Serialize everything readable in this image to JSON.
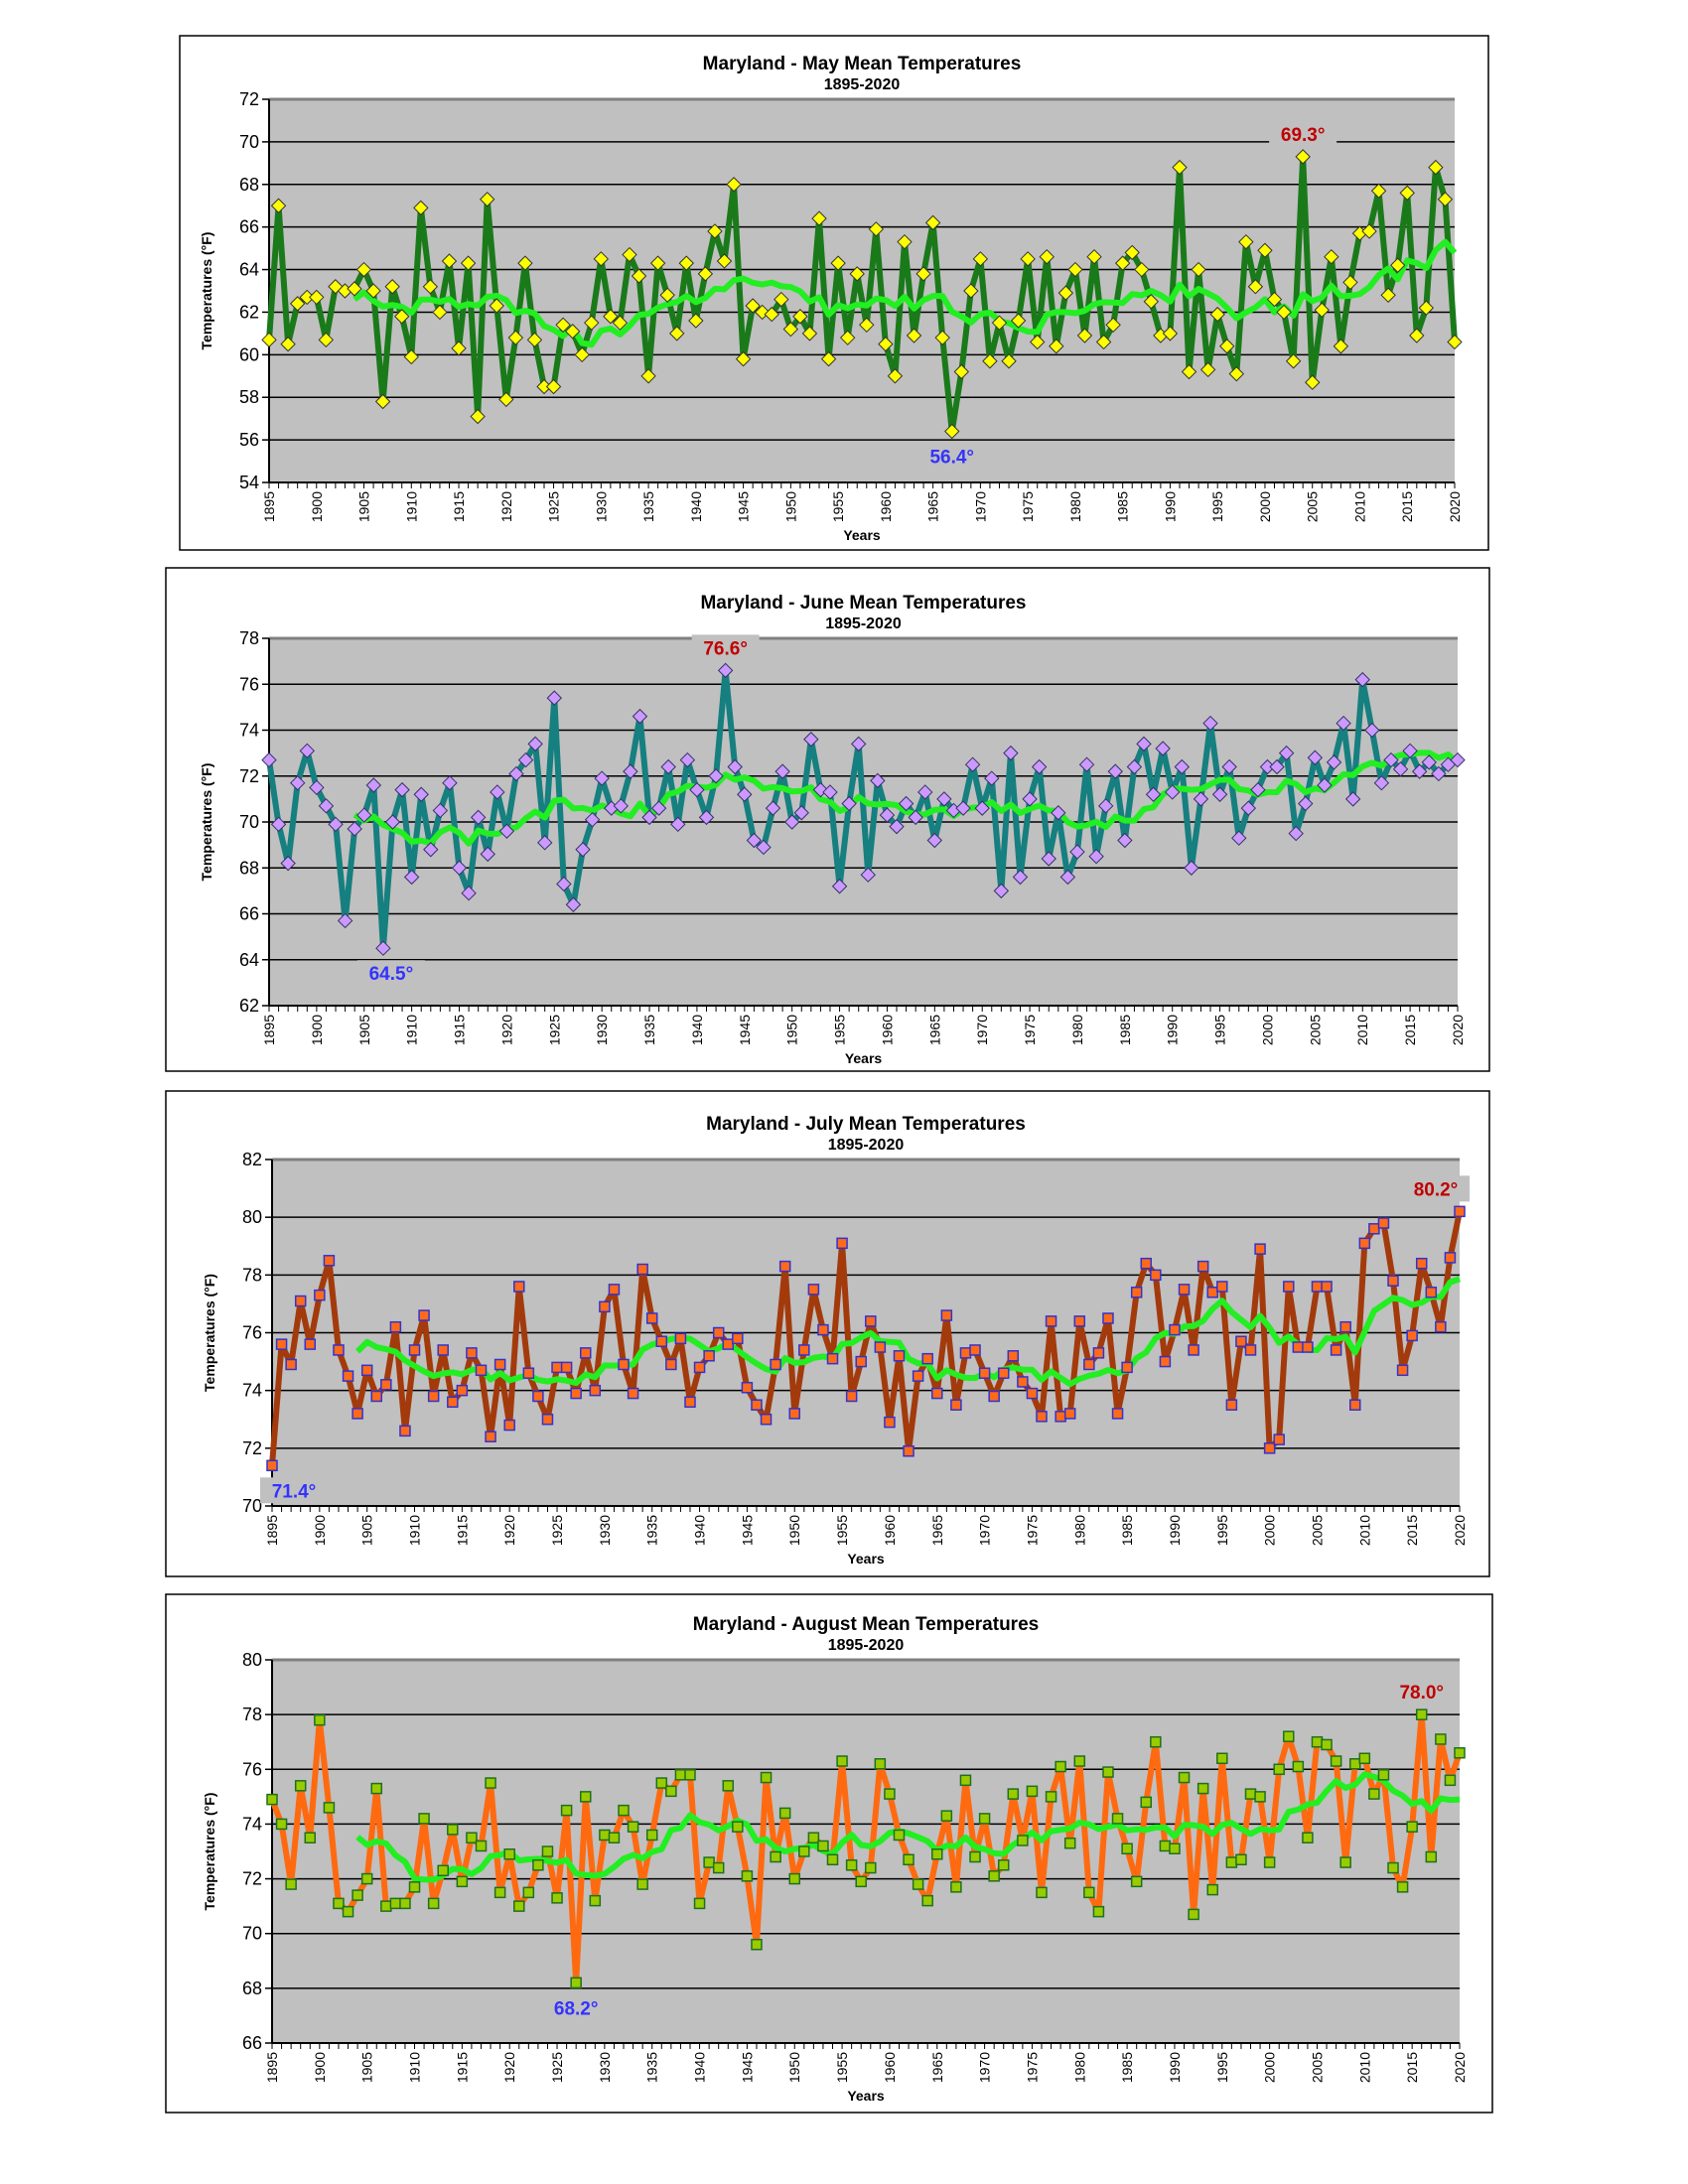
{
  "chart_data": [
    {
      "type": "line",
      "title": "Maryland - May Mean Temperatures",
      "subtitle": "1895-2020",
      "xlabel": "Years",
      "ylabel": "Temperatures (°F)",
      "x_start": 1895,
      "x_end": 2020,
      "x_tick_step": 5,
      "ylim": [
        54,
        72
      ],
      "y_tick_step": 2,
      "grid": true,
      "legend": "none",
      "colors": {
        "line": "#1a7a1a",
        "marker_fill": "#ffff00",
        "marker_edge": "#333333",
        "moving_average": "#22ee22",
        "plot_bg": "#c0c0c0"
      },
      "marker": "diamond",
      "moving_average_window": 10,
      "values": [
        60.7,
        67.0,
        60.5,
        62.4,
        62.7,
        62.7,
        60.7,
        63.2,
        63.0,
        63.1,
        64.0,
        63.0,
        57.8,
        63.2,
        61.8,
        59.9,
        66.9,
        63.2,
        62.0,
        64.4,
        60.3,
        64.3,
        57.1,
        67.3,
        62.3,
        57.9,
        60.8,
        64.3,
        60.7,
        58.5,
        58.5,
        61.4,
        61.1,
        60.0,
        61.5,
        64.5,
        61.8,
        61.5,
        64.7,
        63.7,
        59.0,
        64.3,
        62.8,
        61.0,
        64.3,
        61.6,
        63.8,
        65.8,
        64.4,
        68.0,
        59.8,
        62.3,
        62.0,
        61.9,
        62.6,
        61.2,
        61.8,
        61.0,
        66.4,
        59.8,
        64.3,
        60.8,
        63.8,
        61.4,
        65.9,
        60.5,
        59.0,
        65.3,
        60.9,
        63.8,
        66.2,
        60.8,
        56.4,
        59.2,
        63.0,
        64.5,
        59.7,
        61.5,
        59.7,
        61.6,
        64.5,
        60.6,
        64.6,
        60.4,
        62.9,
        64.0,
        60.9,
        64.6,
        60.6,
        61.4,
        64.3,
        64.8,
        64.0,
        62.5,
        60.9,
        61.0,
        68.8,
        59.2,
        64.0,
        59.3,
        61.9,
        60.4,
        59.1,
        65.3,
        63.2,
        64.9,
        62.6,
        62.0,
        59.7,
        69.3,
        58.7,
        62.1,
        64.6,
        60.4,
        63.4,
        65.7,
        65.8,
        67.7,
        62.8,
        64.2,
        67.6,
        60.9,
        62.2,
        68.8,
        67.3,
        60.6
      ],
      "annotations": [
        {
          "text": "69.3°",
          "year": 2004,
          "kind": "max",
          "color": "#c00000"
        },
        {
          "text": "56.4°",
          "year": 1967,
          "kind": "min",
          "color": "#3333ff"
        }
      ]
    },
    {
      "type": "line",
      "title": "Maryland - June Mean Temperatures",
      "subtitle": "1895-2020",
      "xlabel": "Years",
      "ylabel": "Temperatures (°F)",
      "x_start": 1895,
      "x_end": 2020,
      "x_tick_step": 5,
      "ylim": [
        62,
        78
      ],
      "y_tick_step": 2,
      "grid": true,
      "legend": "none",
      "colors": {
        "line": "#167f7f",
        "marker_fill": "#cc99ff",
        "marker_edge": "#333366",
        "moving_average": "#22ee22",
        "plot_bg": "#c0c0c0"
      },
      "marker": "diamond",
      "moving_average_window": 10,
      "values": [
        72.7,
        69.9,
        68.2,
        71.7,
        73.1,
        71.5,
        70.7,
        69.9,
        65.7,
        69.7,
        70.3,
        71.6,
        64.5,
        70.0,
        71.4,
        67.6,
        71.2,
        68.8,
        70.5,
        71.7,
        68.0,
        66.9,
        70.2,
        68.6,
        71.3,
        69.6,
        72.1,
        72.7,
        73.4,
        69.1,
        75.4,
        67.3,
        66.4,
        68.8,
        70.1,
        71.9,
        70.6,
        70.7,
        72.2,
        74.6,
        70.2,
        70.6,
        72.4,
        69.9,
        72.7,
        71.4,
        70.2,
        72.0,
        76.6,
        72.4,
        71.2,
        69.2,
        68.9,
        70.6,
        72.2,
        70.0,
        70.4,
        73.6,
        71.4,
        71.3,
        67.2,
        70.8,
        73.4,
        67.7,
        71.8,
        70.3,
        69.8,
        70.8,
        70.2,
        71.3,
        69.2,
        71.0,
        70.5,
        70.6,
        72.5,
        70.6,
        71.9,
        67.0,
        73.0,
        67.6,
        71.0,
        72.4,
        68.4,
        70.4,
        67.6,
        68.7,
        72.5,
        68.5,
        70.7,
        72.2,
        69.2,
        72.4,
        73.4,
        71.2,
        73.2,
        71.3,
        72.4,
        68.0,
        71.0,
        74.3,
        71.2,
        72.4,
        69.3,
        70.6,
        71.4,
        72.4,
        72.4,
        73.0,
        69.5,
        70.8,
        72.8,
        71.6,
        72.6,
        74.3,
        71.0,
        76.2,
        74.0,
        71.7,
        72.7,
        72.3,
        73.1,
        72.2,
        72.6,
        72.1,
        72.5,
        72.7
      ],
      "annotations": [
        {
          "text": "76.6°",
          "year": 1943,
          "kind": "max",
          "color": "#c00000"
        },
        {
          "text": "64.5°",
          "year": 1907,
          "kind": "min",
          "color": "#3333ff"
        }
      ]
    },
    {
      "type": "line",
      "title": "Maryland - July Mean Temperatures",
      "subtitle": "1895-2020",
      "xlabel": "Years",
      "ylabel": "Temperatures (°F)",
      "x_start": 1895,
      "x_end": 2020,
      "x_tick_step": 5,
      "ylim": [
        70,
        82
      ],
      "y_tick_step": 2,
      "grid": true,
      "legend": "none",
      "colors": {
        "line": "#a33a0c",
        "marker_fill": "#ff6a1a",
        "marker_edge": "#3333cc",
        "moving_average": "#22ee22",
        "plot_bg": "#c0c0c0"
      },
      "marker": "square",
      "moving_average_window": 10,
      "values": [
        71.4,
        75.6,
        74.9,
        77.1,
        75.6,
        77.3,
        78.5,
        75.4,
        74.5,
        73.2,
        74.7,
        73.8,
        74.2,
        76.2,
        72.6,
        75.4,
        76.6,
        73.8,
        75.4,
        73.6,
        74.0,
        75.3,
        74.7,
        72.4,
        74.9,
        72.8,
        77.6,
        74.6,
        73.8,
        73.0,
        74.8,
        74.8,
        73.9,
        75.3,
        74.0,
        76.9,
        77.5,
        74.9,
        73.9,
        78.2,
        76.5,
        75.7,
        74.9,
        75.8,
        73.6,
        74.8,
        75.2,
        76.0,
        75.6,
        75.8,
        74.1,
        73.5,
        73.0,
        74.9,
        78.3,
        73.2,
        75.4,
        77.5,
        76.1,
        75.1,
        79.1,
        73.8,
        75.0,
        76.4,
        75.5,
        72.9,
        75.2,
        71.9,
        74.5,
        75.1,
        73.9,
        76.6,
        73.5,
        75.3,
        75.4,
        74.6,
        73.8,
        74.6,
        75.2,
        74.3,
        73.9,
        73.1,
        76.4,
        73.1,
        73.2,
        76.4,
        74.9,
        75.3,
        76.5,
        73.2,
        74.8,
        77.4,
        78.4,
        78.0,
        75.0,
        76.1,
        77.5,
        75.4,
        78.3,
        77.4,
        77.6,
        73.5,
        75.7,
        75.4,
        78.9,
        72.0,
        72.3,
        77.6,
        75.5,
        75.5,
        77.6,
        77.6,
        75.4,
        76.2,
        73.5,
        79.1,
        79.6,
        79.8,
        77.8,
        74.7,
        75.9,
        78.4,
        77.4,
        76.2,
        78.6,
        80.2
      ],
      "annotations": [
        {
          "text": "80.2°",
          "year": 2020,
          "kind": "max",
          "color": "#c00000"
        },
        {
          "text": "71.4°",
          "year": 1895,
          "kind": "min",
          "color": "#3333ff"
        }
      ]
    },
    {
      "type": "line",
      "title": "Maryland - August Mean Temperatures",
      "subtitle": "1895-2020",
      "xlabel": "Years",
      "ylabel": "Temperatures (°F)",
      "x_start": 1895,
      "x_end": 2020,
      "x_tick_step": 5,
      "ylim": [
        66,
        80
      ],
      "y_tick_step": 2,
      "grid": true,
      "legend": "none",
      "colors": {
        "line": "#ff6a10",
        "marker_fill": "#99cc00",
        "marker_edge": "#1f6f1f",
        "moving_average": "#22ee22",
        "plot_bg": "#c0c0c0"
      },
      "marker": "square",
      "moving_average_window": 10,
      "values": [
        74.9,
        74.0,
        71.8,
        75.4,
        73.5,
        77.8,
        74.6,
        71.1,
        70.8,
        71.4,
        72.0,
        75.3,
        71.0,
        71.1,
        71.1,
        71.7,
        74.2,
        71.1,
        72.3,
        73.8,
        71.9,
        73.5,
        73.2,
        75.5,
        71.5,
        72.9,
        71.0,
        71.5,
        72.5,
        73.0,
        71.3,
        74.5,
        68.2,
        75.0,
        71.2,
        73.6,
        73.5,
        74.5,
        73.9,
        71.8,
        73.6,
        75.5,
        75.2,
        75.8,
        75.8,
        71.1,
        72.6,
        72.4,
        75.4,
        73.9,
        72.1,
        69.6,
        75.7,
        72.8,
        74.4,
        72.0,
        73.0,
        73.5,
        73.2,
        72.7,
        76.3,
        72.5,
        71.9,
        72.4,
        76.2,
        75.1,
        73.6,
        72.7,
        71.8,
        71.2,
        72.9,
        74.3,
        71.7,
        75.6,
        72.8,
        74.2,
        72.1,
        72.5,
        75.1,
        73.4,
        75.2,
        71.5,
        75.0,
        76.1,
        73.3,
        76.3,
        71.5,
        70.8,
        75.9,
        74.2,
        73.1,
        71.9,
        74.8,
        77.0,
        73.2,
        73.1,
        75.7,
        70.7,
        75.3,
        71.6,
        76.4,
        72.6,
        72.7,
        75.1,
        75.0,
        72.6,
        76.0,
        77.2,
        76.1,
        73.5,
        77.0,
        76.9,
        76.3,
        72.6,
        76.2,
        76.4,
        75.1,
        75.8,
        72.4,
        71.7,
        73.9,
        78.0,
        72.8,
        77.1,
        75.6,
        76.6
      ],
      "annotations": [
        {
          "text": "78.0°",
          "year": 2016,
          "kind": "max",
          "color": "#c00000"
        },
        {
          "text": "68.2°",
          "year": 1927,
          "kind": "min",
          "color": "#3333ff"
        }
      ]
    }
  ]
}
